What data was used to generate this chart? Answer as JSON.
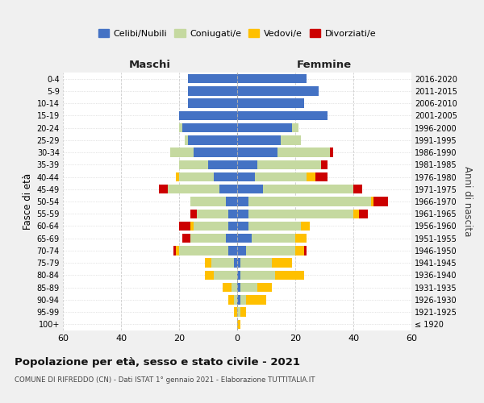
{
  "age_groups": [
    "100+",
    "95-99",
    "90-94",
    "85-89",
    "80-84",
    "75-79",
    "70-74",
    "65-69",
    "60-64",
    "55-59",
    "50-54",
    "45-49",
    "40-44",
    "35-39",
    "30-34",
    "25-29",
    "20-24",
    "15-19",
    "10-14",
    "5-9",
    "0-4"
  ],
  "birth_years": [
    "≤ 1920",
    "1921-1925",
    "1926-1930",
    "1931-1935",
    "1936-1940",
    "1941-1945",
    "1946-1950",
    "1951-1955",
    "1956-1960",
    "1961-1965",
    "1966-1970",
    "1971-1975",
    "1976-1980",
    "1981-1985",
    "1986-1990",
    "1991-1995",
    "1996-2000",
    "2001-2005",
    "2006-2010",
    "2011-2015",
    "2016-2020"
  ],
  "colors": {
    "celibi": "#4472c4",
    "coniugati": "#c5d9a0",
    "vedovi": "#ffc000",
    "divorziati": "#cc0000"
  },
  "maschi": {
    "celibi": [
      0,
      0,
      0,
      0,
      0,
      1,
      3,
      4,
      3,
      3,
      4,
      6,
      8,
      10,
      15,
      17,
      19,
      20,
      17,
      17,
      17
    ],
    "coniugati": [
      0,
      0,
      1,
      2,
      8,
      8,
      17,
      12,
      12,
      11,
      12,
      18,
      12,
      10,
      8,
      1,
      1,
      0,
      0,
      0,
      0
    ],
    "vedovi": [
      0,
      1,
      2,
      3,
      3,
      2,
      1,
      0,
      1,
      0,
      0,
      0,
      1,
      0,
      0,
      0,
      0,
      0,
      0,
      0,
      0
    ],
    "divorziati": [
      0,
      0,
      0,
      0,
      0,
      0,
      1,
      3,
      4,
      2,
      0,
      3,
      0,
      0,
      0,
      0,
      0,
      0,
      0,
      0,
      0
    ]
  },
  "femmine": {
    "celibi": [
      0,
      0,
      1,
      1,
      1,
      1,
      3,
      5,
      4,
      4,
      4,
      9,
      6,
      7,
      14,
      15,
      19,
      31,
      23,
      28,
      24
    ],
    "coniugati": [
      0,
      1,
      2,
      6,
      12,
      11,
      17,
      15,
      18,
      36,
      42,
      31,
      18,
      22,
      18,
      7,
      2,
      0,
      0,
      0,
      0
    ],
    "vedovi": [
      1,
      2,
      7,
      5,
      10,
      7,
      3,
      4,
      3,
      2,
      1,
      0,
      3,
      0,
      0,
      0,
      0,
      0,
      0,
      0,
      0
    ],
    "divorziati": [
      0,
      0,
      0,
      0,
      0,
      0,
      1,
      0,
      0,
      3,
      5,
      3,
      4,
      2,
      1,
      0,
      0,
      0,
      0,
      0,
      0
    ]
  },
  "xlim": 60,
  "title": "Popolazione per età, sesso e stato civile - 2021",
  "subtitle": "COMUNE DI RIFREDDO (CN) - Dati ISTAT 1° gennaio 2021 - Elaborazione TUTTITALIA.IT",
  "ylabel_left": "Fasce di età",
  "ylabel_right": "Anni di nascita",
  "header_maschi": "Maschi",
  "header_femmine": "Femmine",
  "legend_labels": [
    "Celibi/Nubili",
    "Coniugati/e",
    "Vedovi/e",
    "Divorziati/e"
  ],
  "background_color": "#f0f0f0",
  "plot_bg_color": "#ffffff",
  "grid_color": "#cccccc"
}
